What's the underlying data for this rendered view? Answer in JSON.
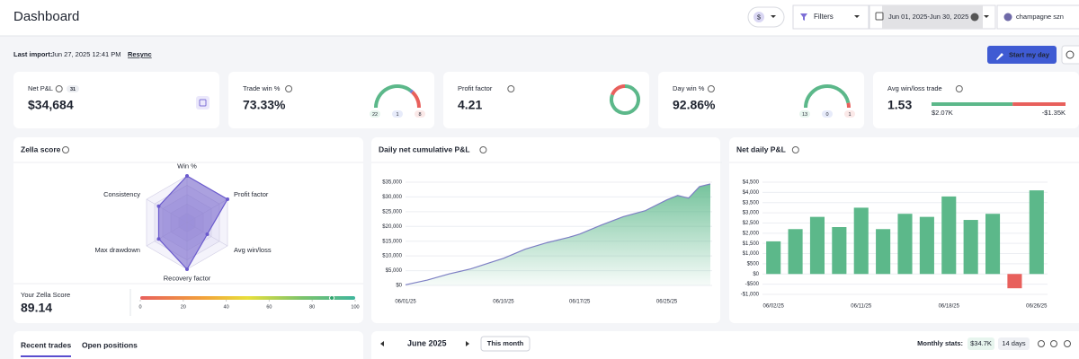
{
  "header": {
    "title": "Dashboard",
    "currency": "$",
    "filters": "Filters",
    "date_range": "Jun 01, 2025-Jun 30, 2025",
    "account": "champagne szn"
  },
  "import_bar": {
    "label": "Last import:",
    "timestamp": "Jun 27, 2025 12:41 PM",
    "resync": "Resync",
    "start_button": "Start my day"
  },
  "stats": {
    "net_pnl": {
      "label": "Net P&L",
      "trade_count": 31,
      "value": "$34,684"
    },
    "trade_win": {
      "label": "Trade win %",
      "value": "73.33%",
      "wins": 22,
      "breakeven": 1,
      "losses": 8
    },
    "profit_factor": {
      "label": "Profit factor",
      "value": 4.21
    },
    "day_win": {
      "label": "Day win %",
      "value": "92.86%",
      "wins": 13,
      "breakeven": 0,
      "losses": 1
    },
    "avg_win_loss": {
      "label": "Avg win/loss trade",
      "value": 1.53,
      "avg_win": {
        "value": 2070,
        "label": "$2.07K"
      },
      "avg_loss": {
        "value": -1350,
        "label": "-$1.35K"
      }
    }
  },
  "zella": {
    "title": "Zella score",
    "radar": {
      "axes": [
        "Win %",
        "Profit factor",
        "Avg win/loss",
        "Recovery factor",
        "Max drawdown",
        "Consistency"
      ],
      "values": [
        100,
        100,
        50,
        100,
        70,
        70
      ],
      "rlim": [
        0,
        100
      ]
    },
    "score_label": "Your Zella Score",
    "score": 89.14,
    "scale": {
      "ticks": [
        0,
        20,
        40,
        60,
        80,
        100
      ],
      "lim": [
        0,
        100
      ]
    }
  },
  "cumulative": {
    "type": "area",
    "title": "Daily net cumulative P&L",
    "color": "#5cb88a",
    "line_color": "#7d7fc4",
    "x": [
      "06/01/25",
      "06/03/25",
      "06/05/25",
      "06/07/25",
      "06/09/25",
      "06/10/25",
      "06/12/25",
      "06/14/25",
      "06/16/25",
      "06/17/25",
      "06/19/25",
      "06/21/25",
      "06/23/25",
      "06/25/25",
      "06/26/25",
      "06/27/25",
      "06/28/25",
      "06/29/25"
    ],
    "values": [
      200,
      1800,
      3900,
      5600,
      8000,
      9200,
      12300,
      14500,
      16300,
      17400,
      20500,
      23300,
      25300,
      29000,
      30500,
      29600,
      33500,
      34400
    ],
    "xticks": [
      "06/01/25",
      "06/10/25",
      "06/17/25",
      "06/25/25"
    ],
    "ylim": [
      0,
      35000
    ],
    "yticks": [
      {
        "value": 0,
        "label": "$0"
      },
      {
        "value": 5000,
        "label": "$5,000"
      },
      {
        "value": 10000,
        "label": "$10,000"
      },
      {
        "value": 15000,
        "label": "$15,000"
      },
      {
        "value": 20000,
        "label": "$20,000"
      },
      {
        "value": 25000,
        "label": "$25,000"
      },
      {
        "value": 30000,
        "label": "$30,000"
      },
      {
        "value": 35000,
        "label": "$35,000"
      }
    ],
    "grid": true
  },
  "net_daily": {
    "type": "bar",
    "title": "Net daily P&L",
    "positive_color": "#5cb88a",
    "negative_color": "#e8605c",
    "categories": [
      "06/02/25",
      "06/03/25",
      "06/05/25",
      "06/09/25",
      "06/11/25",
      "06/12/25",
      "06/13/25",
      "06/16/25",
      "06/18/25",
      "06/20/25",
      "06/23/25",
      "06/25/25",
      "06/26/25"
    ],
    "values": [
      1600,
      2200,
      2800,
      2300,
      3250,
      2200,
      2950,
      2800,
      3800,
      2650,
      2950,
      -700,
      4100
    ],
    "xticks": [
      "06/02/25",
      "06/11/25",
      "06/18/25",
      "06/26/25"
    ],
    "ylim": [
      -1000,
      4500
    ],
    "yticks": [
      {
        "value": -1000,
        "label": "-$1,000"
      },
      {
        "value": -500,
        "label": "-$500"
      },
      {
        "value": 0,
        "label": "$0"
      },
      {
        "value": 500,
        "label": "$500"
      },
      {
        "value": 1000,
        "label": "$1,000"
      },
      {
        "value": 1500,
        "label": "$1,500"
      },
      {
        "value": 2000,
        "label": "$2,000"
      },
      {
        "value": 2500,
        "label": "$2,500"
      },
      {
        "value": 3000,
        "label": "$3,000"
      },
      {
        "value": 3500,
        "label": "$3,500"
      },
      {
        "value": 4000,
        "label": "$4,000"
      },
      {
        "value": 4500,
        "label": "$4,500"
      }
    ],
    "grid": true
  },
  "bottom": {
    "tabs": [
      "Recent trades",
      "Open positions"
    ],
    "month": "June 2025",
    "this_month": "This month",
    "stats_label": "Monthly stats:",
    "stats_pnl": "$34.7K",
    "stats_days": "14 days"
  }
}
